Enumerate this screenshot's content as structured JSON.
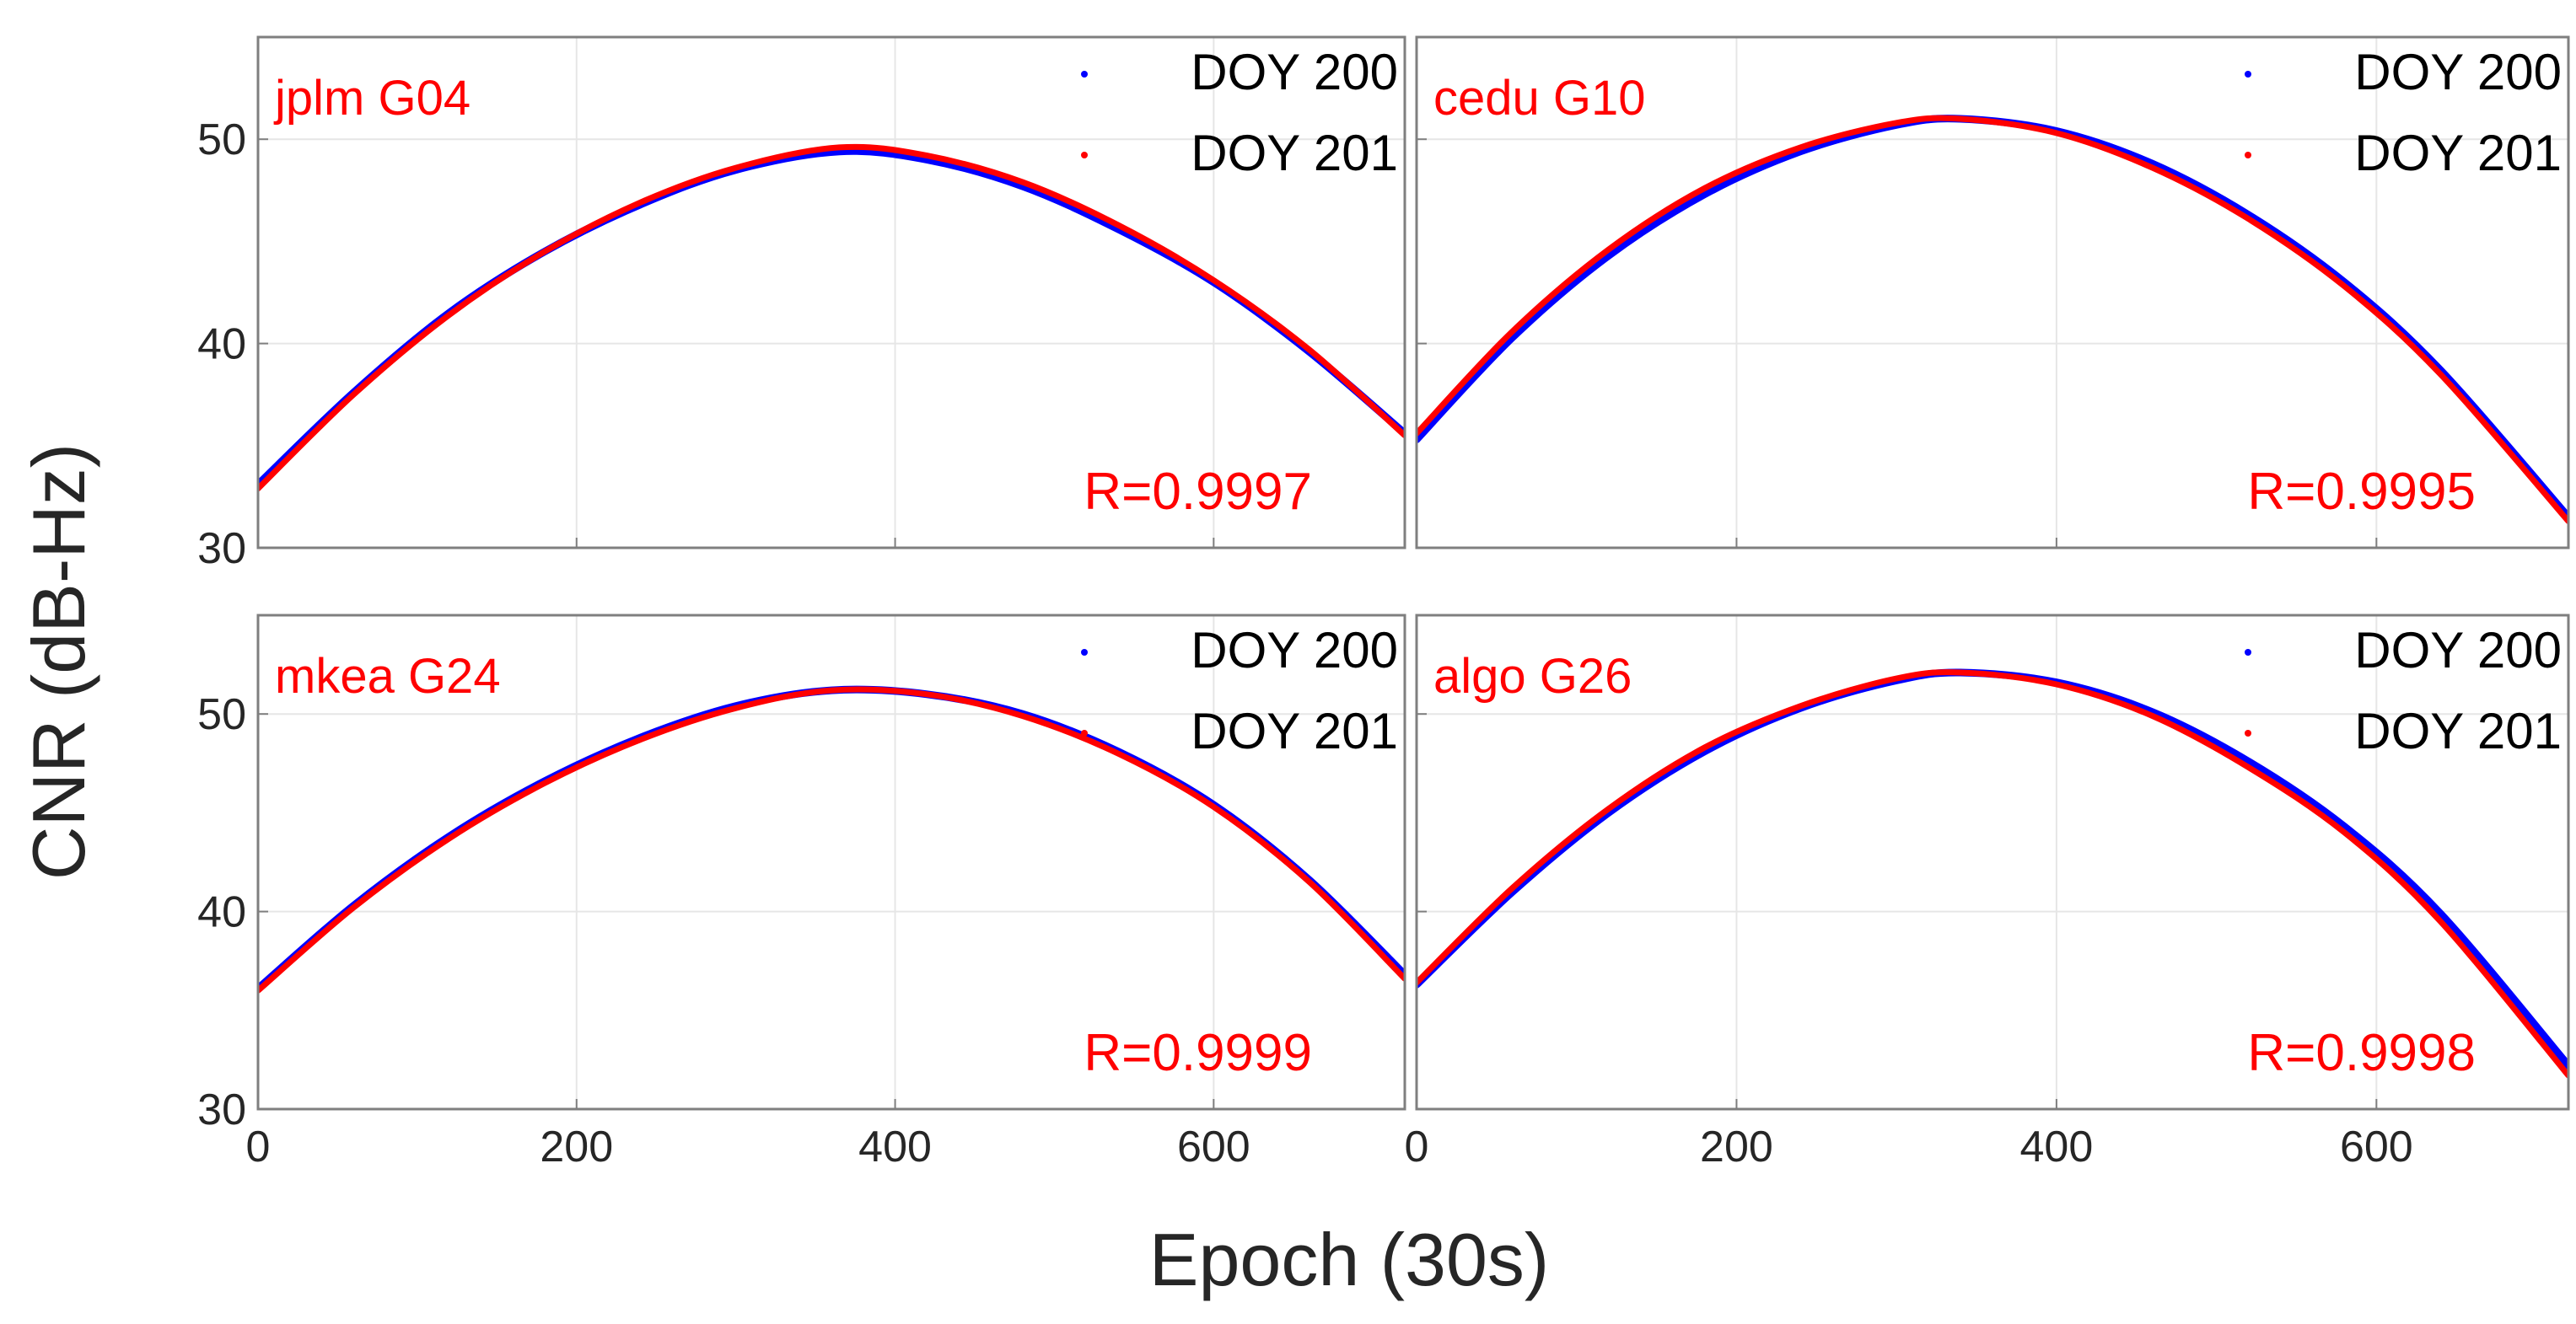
{
  "figure": {
    "ylabel": "CNR (dB-Hz)",
    "xlabel": "Epoch (30s)"
  },
  "colors": {
    "doy200": "#0000ff",
    "doy201": "#ff0000",
    "annotation": "#ff0000",
    "grid": "#e6e6e6",
    "axes": "#7f7f7f",
    "text": "#262626"
  },
  "chart_data": [
    {
      "type": "line",
      "title": "jplm G04",
      "correlation": "R=0.9997",
      "xlim": [
        0,
        720
      ],
      "ylim": [
        30,
        55
      ],
      "xticks": [
        0,
        200,
        400,
        600
      ],
      "yticks": [
        30,
        40,
        50
      ],
      "grid": true,
      "legend_position": "top-right",
      "series": [
        {
          "name": "DOY 200",
          "x": [
            0,
            60,
            120,
            180,
            240,
            300,
            365,
            420,
            480,
            540,
            600,
            660,
            720
          ],
          "y": [
            33.1,
            37.6,
            41.5,
            44.5,
            46.8,
            48.5,
            49.4,
            49.0,
            47.7,
            45.6,
            43.0,
            39.6,
            35.6
          ]
        },
        {
          "name": "DOY 201",
          "x": [
            0,
            60,
            120,
            180,
            240,
            300,
            365,
            420,
            480,
            540,
            600,
            660,
            720
          ],
          "y": [
            32.9,
            37.5,
            41.4,
            44.5,
            46.9,
            48.6,
            49.6,
            49.2,
            47.9,
            45.8,
            43.1,
            39.7,
            35.5
          ]
        }
      ]
    },
    {
      "type": "line",
      "title": "cedu G10",
      "correlation": "R=0.9995",
      "xlim": [
        0,
        720
      ],
      "ylim": [
        30,
        55
      ],
      "xticks": [
        0,
        200,
        400,
        600
      ],
      "yticks": [
        30,
        40,
        50
      ],
      "grid": true,
      "legend_position": "top-right",
      "series": [
        {
          "name": "DOY 200",
          "x": [
            0,
            60,
            120,
            180,
            240,
            300,
            340,
            400,
            460,
            520,
            580,
            640,
            720
          ],
          "y": [
            35.3,
            40.3,
            44.3,
            47.3,
            49.4,
            50.7,
            51.0,
            50.4,
            48.8,
            46.3,
            43.0,
            38.7,
            31.5
          ]
        },
        {
          "name": "DOY 201",
          "x": [
            0,
            60,
            120,
            180,
            240,
            300,
            340,
            400,
            460,
            520,
            580,
            640,
            720
          ],
          "y": [
            35.6,
            40.6,
            44.6,
            47.6,
            49.6,
            50.8,
            51.0,
            50.3,
            48.6,
            46.1,
            42.8,
            38.5,
            31.3
          ]
        }
      ]
    },
    {
      "type": "line",
      "title": "mkea G24",
      "correlation": "R=0.9999",
      "xlim": [
        0,
        720
      ],
      "ylim": [
        30,
        55
      ],
      "xticks": [
        0,
        200,
        400,
        600
      ],
      "yticks": [
        30,
        40,
        50
      ],
      "grid": true,
      "legend_position": "top-right",
      "series": [
        {
          "name": "DOY 200",
          "x": [
            0,
            60,
            120,
            180,
            240,
            300,
            360,
            420,
            480,
            540,
            600,
            660,
            720
          ],
          "y": [
            36.1,
            40.3,
            43.8,
            46.6,
            48.8,
            50.4,
            51.2,
            51.0,
            50.0,
            48.1,
            45.4,
            41.6,
            36.8
          ]
        },
        {
          "name": "DOY 201",
          "x": [
            0,
            60,
            120,
            180,
            240,
            300,
            360,
            420,
            480,
            540,
            600,
            660,
            720
          ],
          "y": [
            36.0,
            40.2,
            43.7,
            46.5,
            48.7,
            50.3,
            51.2,
            51.0,
            49.9,
            48.0,
            45.3,
            41.5,
            36.6
          ]
        }
      ]
    },
    {
      "type": "line",
      "title": "algo G26",
      "correlation": "R=0.9998",
      "xlim": [
        0,
        720
      ],
      "ylim": [
        30,
        55
      ],
      "xticks": [
        0,
        200,
        400,
        600
      ],
      "yticks": [
        30,
        40,
        50
      ],
      "grid": true,
      "legend_position": "top-right",
      "series": [
        {
          "name": "DOY 200",
          "x": [
            0,
            60,
            120,
            180,
            240,
            300,
            340,
            400,
            460,
            520,
            580,
            640,
            720
          ],
          "y": [
            36.3,
            41.0,
            45.0,
            48.1,
            50.3,
            51.7,
            52.1,
            51.6,
            50.1,
            47.6,
            44.3,
            39.9,
            32.2
          ]
        },
        {
          "name": "DOY 201",
          "x": [
            0,
            60,
            120,
            180,
            240,
            300,
            340,
            400,
            460,
            520,
            580,
            640,
            720
          ],
          "y": [
            36.4,
            41.2,
            45.2,
            48.3,
            50.4,
            51.8,
            52.1,
            51.5,
            49.9,
            47.3,
            44.0,
            39.5,
            31.7
          ]
        }
      ]
    }
  ]
}
